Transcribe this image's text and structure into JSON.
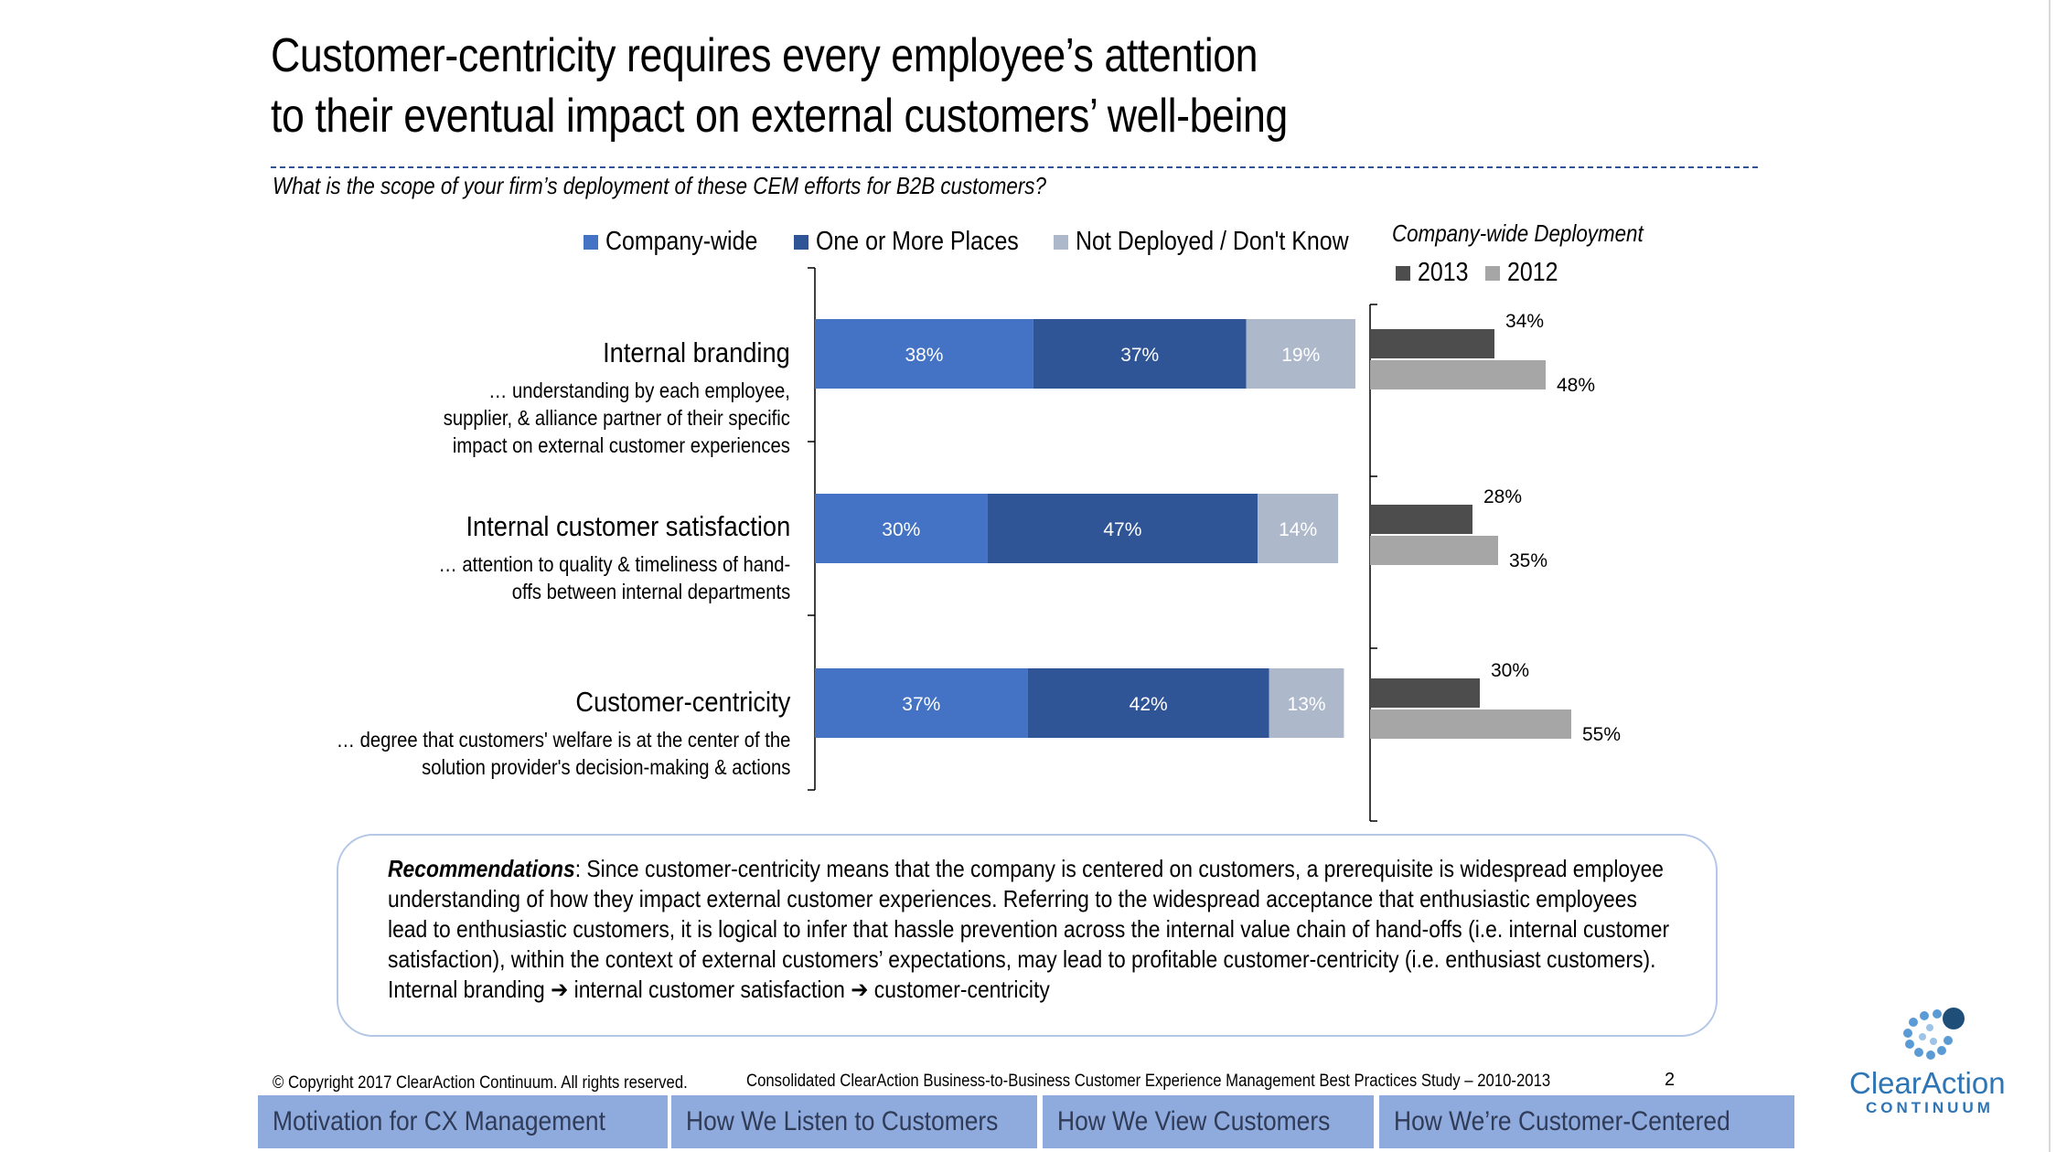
{
  "title": {
    "line1": "Customer-centricity requires every employee’s attention",
    "line2": "to their eventual impact on external customers’ well-being"
  },
  "question": "What is the scope of your firm’s deployment of these CEM efforts for B2B customers?",
  "colors": {
    "company_wide": "#4472c4",
    "one_or_more": "#2f5597",
    "not_deployed": "#adb9ca",
    "y2013": "#4d4d4d",
    "y2012": "#a6a6a6",
    "nav_tab": "#8faadc",
    "brand": "#2e75b6"
  },
  "categories": [
    {
      "name": "Internal branding",
      "desc": [
        "… understanding by each employee,",
        "supplier, & alliance partner of their specific",
        "impact on external customer experiences"
      ]
    },
    {
      "name": "Internal customer satisfaction",
      "desc": [
        "… attention to quality & timeliness of hand-",
        "offs between internal departments"
      ]
    },
    {
      "name": "Customer-centricity",
      "desc": [
        "… degree that customers' welfare is at the center of the",
        "solution provider's decision-making & actions"
      ]
    }
  ],
  "chart_data": [
    {
      "type": "bar",
      "orientation": "horizontal",
      "stacked": true,
      "categories": [
        "Internal branding",
        "Internal customer satisfaction",
        "Customer-centricity"
      ],
      "series": [
        {
          "name": "Company-wide",
          "values": [
            38,
            30,
            37
          ],
          "labels": [
            "38%",
            "30%",
            "37%"
          ]
        },
        {
          "name": "One or More Places",
          "values": [
            37,
            47,
            42
          ],
          "labels": [
            "37%",
            "47%",
            "42%"
          ]
        },
        {
          "name": "Not Deployed / Don't Know",
          "values": [
            19,
            14,
            13
          ],
          "labels": [
            "19%",
            "14%",
            "13%"
          ]
        }
      ],
      "xlim": [
        0,
        94
      ],
      "legend": "top"
    },
    {
      "type": "bar",
      "orientation": "horizontal",
      "title": "Company-wide Deployment",
      "categories": [
        "Internal branding",
        "Internal customer satisfaction",
        "Customer-centricity"
      ],
      "series": [
        {
          "name": "2013",
          "values": [
            34,
            28,
            30
          ],
          "labels": [
            "34%",
            "28%",
            "30%"
          ]
        },
        {
          "name": "2012",
          "values": [
            48,
            35,
            55
          ],
          "labels": [
            "48%",
            "35%",
            "55%"
          ]
        }
      ],
      "xlim": [
        0,
        100
      ],
      "legend": "top-left"
    }
  ],
  "recommendations": {
    "label": "Recommendations",
    "line1": ": Since customer-centricity means that the company is centered on customers, a prerequisite is widespread employee",
    "line2": "understanding of how they impact external customer experiences. Referring to the widespread acceptance that enthusiastic employees",
    "line3": "lead to enthusiastic customers, it is logical to infer that hassle prevention across the internal value chain of hand-offs (i.e. internal customer",
    "line4": "satisfaction), within the context of external customers’ expectations, may lead to profitable customer-centricity (i.e. enthusiast customers).",
    "line5": "Internal branding ➔ internal customer satisfaction ➔ customer-centricity"
  },
  "footer": {
    "copyright": "© Copyright 2017 ClearAction Continuum. All rights reserved.",
    "study": "Consolidated ClearAction Business-to-Business Customer Experience Management Best Practices Study – 2010-2013",
    "page": "2"
  },
  "nav": [
    "Motivation for CX Management",
    "How We Listen to Customers",
    "How We View Customers",
    "How We’re Customer-Centered"
  ],
  "logo": {
    "name": "ClearAction",
    "sub": "CONTINUUM",
    "icon": "dots-circle-logo-icon"
  }
}
